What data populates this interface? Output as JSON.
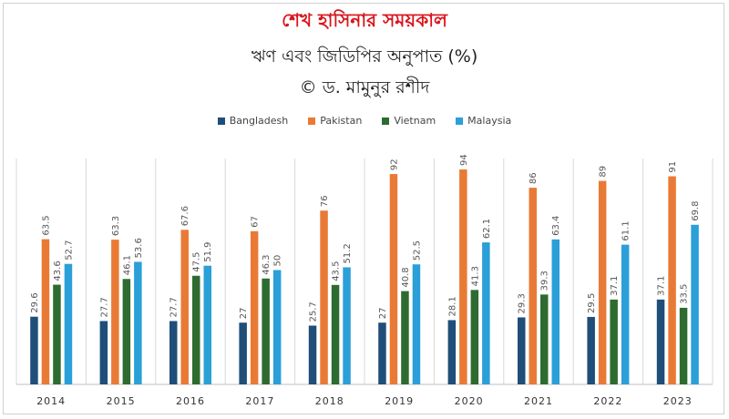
{
  "header": {
    "title": "শেখ হাসিনার সময়কাল",
    "subtitle": "ঋণ এবং জিডিপির অনুপাত (%)",
    "credit": "© ড. মামুনুর রশীদ"
  },
  "chart_data": {
    "type": "bar",
    "categories": [
      "2014",
      "2015",
      "2016",
      "2017",
      "2018",
      "2019",
      "2020",
      "2021",
      "2022",
      "2023"
    ],
    "series": [
      {
        "name": "Bangladesh",
        "color": "#1f4e79",
        "values": [
          29.6,
          27.7,
          27.7,
          27,
          25.7,
          27,
          28.1,
          29.3,
          29.5,
          37.1
        ]
      },
      {
        "name": "Pakistan",
        "color": "#e97a36",
        "values": [
          63.5,
          63.3,
          67.6,
          67,
          76,
          92,
          94,
          86,
          89,
          91
        ]
      },
      {
        "name": "Vietnam",
        "color": "#2e6b30",
        "values": [
          43.6,
          46.1,
          47.5,
          46.3,
          43.5,
          40.8,
          41.3,
          39.3,
          37.1,
          33.5
        ]
      },
      {
        "name": "Malaysia",
        "color": "#2a9fd8",
        "values": [
          52.7,
          53.6,
          51.9,
          50,
          51.2,
          52.5,
          62.1,
          63.4,
          61.1,
          69.8
        ]
      }
    ],
    "ylim": [
      0,
      100
    ],
    "grid": false,
    "legend_position": "top"
  }
}
